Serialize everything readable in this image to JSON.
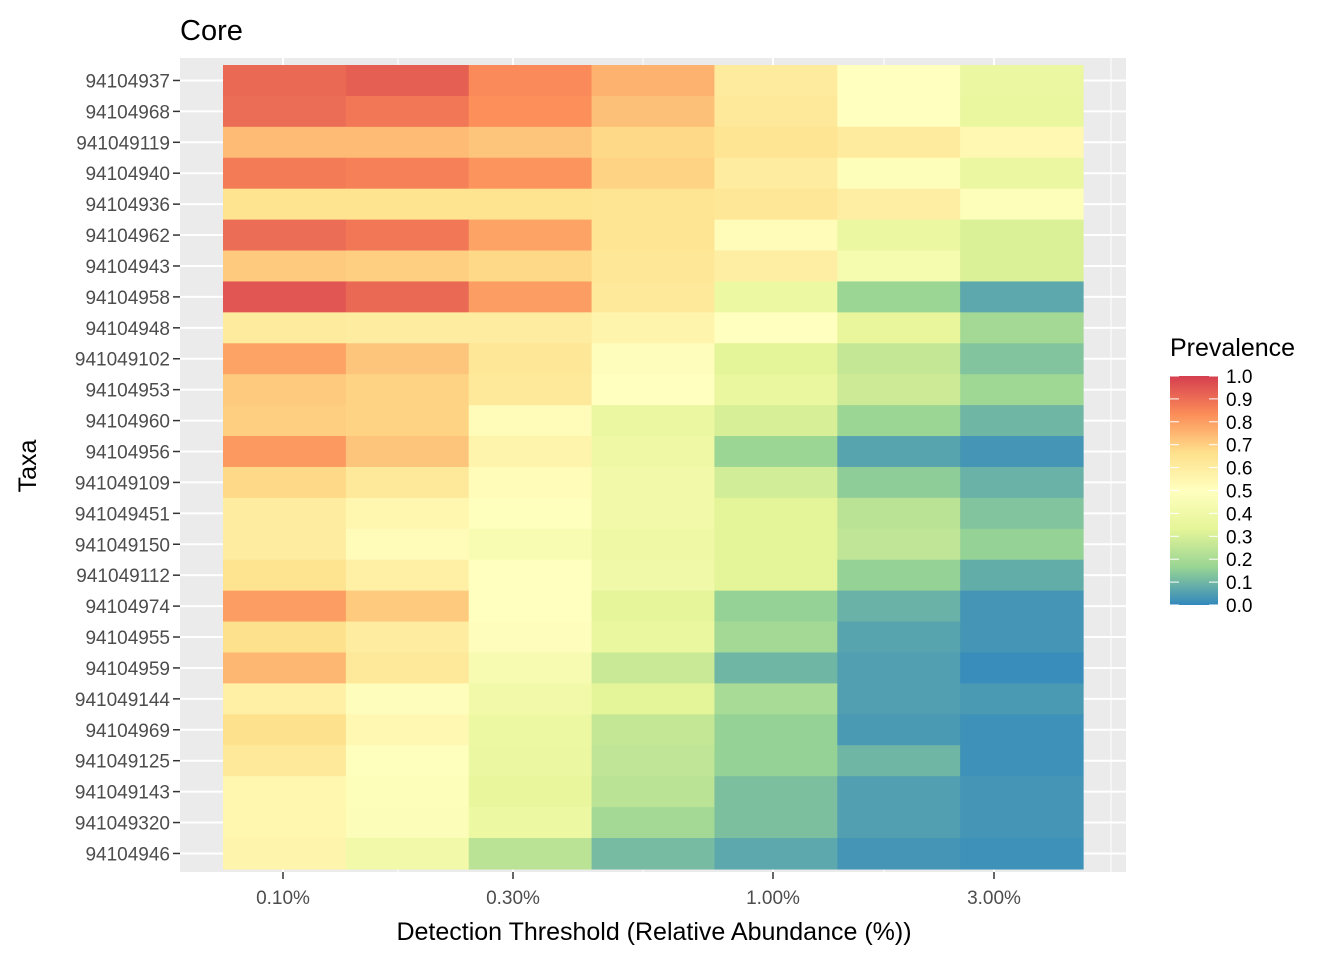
{
  "chart_data": {
    "type": "heatmap",
    "title": "Core",
    "xlabel": "Detection Threshold (Relative Abundance (%))",
    "ylabel": "Taxa",
    "x_tick_labels": [
      "0.10%",
      "0.30%",
      "1.00%",
      "3.00%"
    ],
    "x_log_scale": true,
    "grid": true,
    "legend": {
      "title": "Prevalence",
      "position": "right",
      "ticks": [
        "1.0",
        "0.9",
        "0.8",
        "0.7",
        "0.6",
        "0.5",
        "0.4",
        "0.3",
        "0.2",
        "0.1",
        "0.0"
      ],
      "range": [
        0,
        1
      ],
      "colors": [
        "#3288bd",
        "#99d594",
        "#e6f598",
        "#ffffbf",
        "#fee08b",
        "#fc8d59",
        "#d53e4f"
      ]
    },
    "columns": 7,
    "rows": [
      {
        "taxon": "94104937",
        "values": [
          0.91,
          0.93,
          0.84,
          0.76,
          0.61,
          0.5,
          0.37
        ]
      },
      {
        "taxon": "94104968",
        "values": [
          0.9,
          0.88,
          0.83,
          0.73,
          0.62,
          0.5,
          0.36
        ]
      },
      {
        "taxon": "941049119",
        "values": [
          0.74,
          0.74,
          0.72,
          0.68,
          0.64,
          0.61,
          0.54
        ]
      },
      {
        "taxon": "94104940",
        "values": [
          0.87,
          0.86,
          0.82,
          0.69,
          0.6,
          0.48,
          0.37
        ]
      },
      {
        "taxon": "94104936",
        "values": [
          0.65,
          0.65,
          0.65,
          0.64,
          0.63,
          0.59,
          0.48
        ]
      },
      {
        "taxon": "94104962",
        "values": [
          0.9,
          0.88,
          0.79,
          0.64,
          0.52,
          0.37,
          0.31
        ]
      },
      {
        "taxon": "94104943",
        "values": [
          0.71,
          0.7,
          0.68,
          0.63,
          0.59,
          0.43,
          0.31
        ]
      },
      {
        "taxon": "94104958",
        "values": [
          0.95,
          0.91,
          0.8,
          0.62,
          0.38,
          0.17,
          0.07
        ]
      },
      {
        "taxon": "94104948",
        "values": [
          0.61,
          0.6,
          0.6,
          0.56,
          0.5,
          0.35,
          0.19
        ]
      },
      {
        "taxon": "941049102",
        "values": [
          0.79,
          0.72,
          0.63,
          0.51,
          0.33,
          0.26,
          0.13
        ]
      },
      {
        "taxon": "94104953",
        "values": [
          0.71,
          0.69,
          0.62,
          0.5,
          0.36,
          0.28,
          0.18
        ]
      },
      {
        "taxon": "94104960",
        "values": [
          0.7,
          0.69,
          0.52,
          0.37,
          0.3,
          0.17,
          0.1
        ]
      },
      {
        "taxon": "94104956",
        "values": [
          0.81,
          0.72,
          0.56,
          0.39,
          0.17,
          0.06,
          0.03
        ]
      },
      {
        "taxon": "941049109",
        "values": [
          0.68,
          0.62,
          0.52,
          0.41,
          0.29,
          0.15,
          0.09
        ]
      },
      {
        "taxon": "941049451",
        "values": [
          0.6,
          0.55,
          0.49,
          0.41,
          0.33,
          0.24,
          0.13
        ]
      },
      {
        "taxon": "941049150",
        "values": [
          0.6,
          0.52,
          0.45,
          0.39,
          0.33,
          0.25,
          0.16
        ]
      },
      {
        "taxon": "941049112",
        "values": [
          0.65,
          0.58,
          0.5,
          0.4,
          0.33,
          0.16,
          0.08
        ]
      },
      {
        "taxon": "94104974",
        "values": [
          0.8,
          0.71,
          0.5,
          0.34,
          0.16,
          0.09,
          0.03
        ]
      },
      {
        "taxon": "94104955",
        "values": [
          0.66,
          0.6,
          0.51,
          0.36,
          0.19,
          0.06,
          0.03
        ]
      },
      {
        "taxon": "94104959",
        "values": [
          0.75,
          0.62,
          0.44,
          0.27,
          0.1,
          0.05,
          0.01
        ]
      },
      {
        "taxon": "941049144",
        "values": [
          0.58,
          0.51,
          0.41,
          0.33,
          0.2,
          0.05,
          0.04
        ]
      },
      {
        "taxon": "94104969",
        "values": [
          0.66,
          0.54,
          0.38,
          0.26,
          0.16,
          0.04,
          0.02
        ]
      },
      {
        "taxon": "941049125",
        "values": [
          0.62,
          0.49,
          0.37,
          0.25,
          0.16,
          0.1,
          0.02
        ]
      },
      {
        "taxon": "941049143",
        "values": [
          0.55,
          0.48,
          0.35,
          0.24,
          0.12,
          0.05,
          0.03
        ]
      },
      {
        "taxon": "941049320",
        "values": [
          0.55,
          0.47,
          0.38,
          0.19,
          0.12,
          0.05,
          0.03
        ]
      },
      {
        "taxon": "94104946",
        "values": [
          0.56,
          0.41,
          0.24,
          0.11,
          0.07,
          0.03,
          0.02
        ]
      }
    ]
  }
}
